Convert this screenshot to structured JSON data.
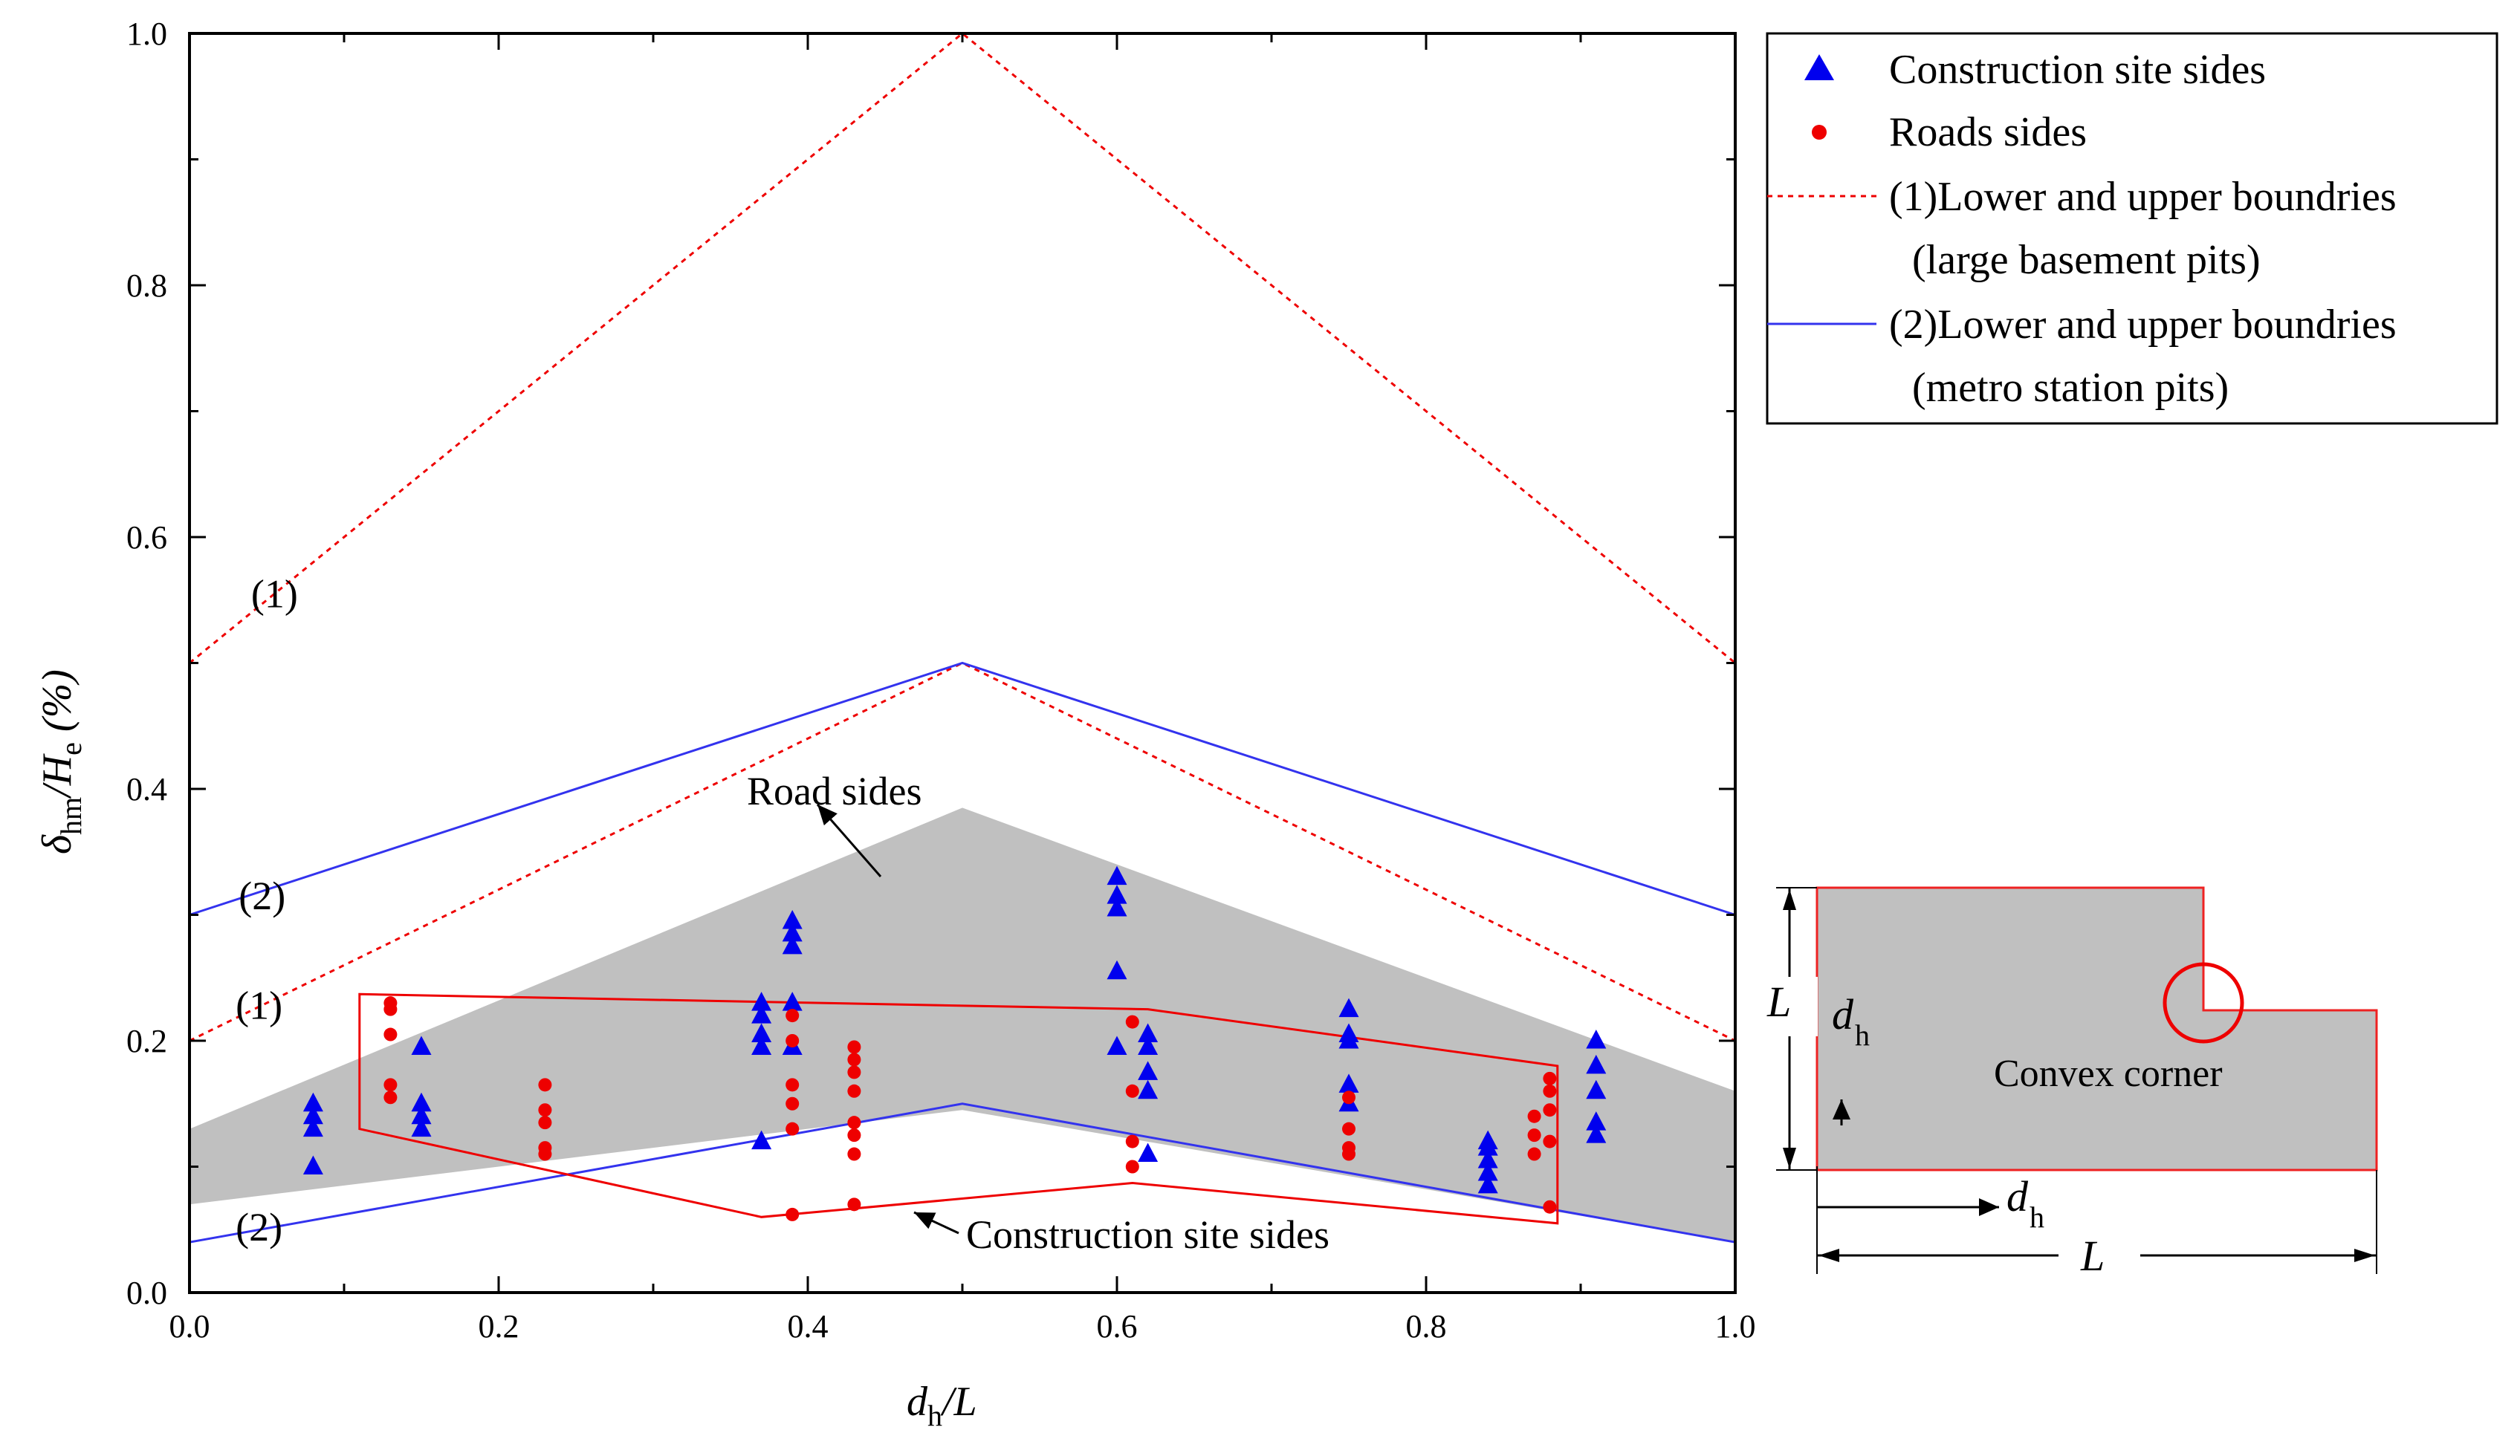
{
  "chart_data": {
    "type": "scatter",
    "title": "",
    "xlabel": {
      "main": "d",
      "sub": "h",
      "rest": "/L"
    },
    "ylabel": {
      "delta": "δ",
      "sub1": "hm",
      "mid": "/H",
      "sub2": "e",
      "rest": " (%)"
    },
    "xlim": [
      0.0,
      1.0
    ],
    "ylim": [
      0.0,
      1.0
    ],
    "x_ticks": [
      "0.0",
      "0.2",
      "0.4",
      "0.6",
      "0.8",
      "1.0"
    ],
    "y_ticks": [
      "0.0",
      "0.2",
      "0.4",
      "0.6",
      "0.8",
      "1.0"
    ],
    "grid": false,
    "legend_position": "outside-top-right",
    "series": [
      {
        "name": "Construction site sides",
        "marker": "triangle",
        "color": "#0000ee",
        "points": [
          [
            0.08,
            0.1
          ],
          [
            0.08,
            0.13
          ],
          [
            0.08,
            0.14
          ],
          [
            0.08,
            0.15
          ],
          [
            0.15,
            0.13
          ],
          [
            0.15,
            0.14
          ],
          [
            0.15,
            0.15
          ],
          [
            0.15,
            0.195
          ],
          [
            0.37,
            0.12
          ],
          [
            0.37,
            0.195
          ],
          [
            0.37,
            0.205
          ],
          [
            0.37,
            0.22
          ],
          [
            0.37,
            0.23
          ],
          [
            0.39,
            0.195
          ],
          [
            0.39,
            0.23
          ],
          [
            0.39,
            0.275
          ],
          [
            0.39,
            0.285
          ],
          [
            0.39,
            0.295
          ],
          [
            0.6,
            0.195
          ],
          [
            0.6,
            0.255
          ],
          [
            0.6,
            0.305
          ],
          [
            0.6,
            0.315
          ],
          [
            0.6,
            0.33
          ],
          [
            0.62,
            0.11
          ],
          [
            0.62,
            0.16
          ],
          [
            0.62,
            0.175
          ],
          [
            0.62,
            0.195
          ],
          [
            0.62,
            0.205
          ],
          [
            0.75,
            0.15
          ],
          [
            0.75,
            0.165
          ],
          [
            0.75,
            0.2
          ],
          [
            0.75,
            0.205
          ],
          [
            0.75,
            0.225
          ],
          [
            0.84,
            0.085
          ],
          [
            0.84,
            0.095
          ],
          [
            0.84,
            0.105
          ],
          [
            0.84,
            0.115
          ],
          [
            0.84,
            0.12
          ],
          [
            0.91,
            0.125
          ],
          [
            0.91,
            0.135
          ],
          [
            0.91,
            0.16
          ],
          [
            0.91,
            0.18
          ],
          [
            0.91,
            0.2
          ]
        ]
      },
      {
        "name": "Roads sides",
        "marker": "circle",
        "color": "#ee0000",
        "points": [
          [
            0.13,
            0.155
          ],
          [
            0.13,
            0.165
          ],
          [
            0.13,
            0.205
          ],
          [
            0.13,
            0.225
          ],
          [
            0.13,
            0.23
          ],
          [
            0.23,
            0.11
          ],
          [
            0.23,
            0.115
          ],
          [
            0.23,
            0.135
          ],
          [
            0.23,
            0.145
          ],
          [
            0.23,
            0.165
          ],
          [
            0.39,
            0.062
          ],
          [
            0.39,
            0.13
          ],
          [
            0.39,
            0.15
          ],
          [
            0.39,
            0.165
          ],
          [
            0.39,
            0.2
          ],
          [
            0.39,
            0.22
          ],
          [
            0.43,
            0.07
          ],
          [
            0.43,
            0.11
          ],
          [
            0.43,
            0.125
          ],
          [
            0.43,
            0.135
          ],
          [
            0.43,
            0.16
          ],
          [
            0.43,
            0.175
          ],
          [
            0.43,
            0.185
          ],
          [
            0.43,
            0.195
          ],
          [
            0.61,
            0.1
          ],
          [
            0.61,
            0.12
          ],
          [
            0.61,
            0.16
          ],
          [
            0.61,
            0.215
          ],
          [
            0.75,
            0.11
          ],
          [
            0.75,
            0.115
          ],
          [
            0.75,
            0.13
          ],
          [
            0.75,
            0.155
          ],
          [
            0.87,
            0.11
          ],
          [
            0.87,
            0.125
          ],
          [
            0.87,
            0.14
          ],
          [
            0.88,
            0.068
          ],
          [
            0.88,
            0.12
          ],
          [
            0.88,
            0.145
          ],
          [
            0.88,
            0.16
          ],
          [
            0.88,
            0.17
          ]
        ]
      }
    ],
    "boundary_lines": [
      {
        "name": "(1)Lower and upper boundries",
        "name_line2": "(large basement pits)",
        "style": "dotted",
        "color": "#ee0000",
        "lines": [
          [
            [
              0.0,
              0.5
            ],
            [
              0.5,
              1.0
            ],
            [
              1.0,
              0.5
            ]
          ],
          [
            [
              0.0,
              0.2
            ],
            [
              0.5,
              0.5
            ],
            [
              1.0,
              0.2
            ]
          ]
        ]
      },
      {
        "name": "(2)Lower and upper boundries",
        "name_line2": "(metro station pits)",
        "style": "solid",
        "color": "#3333ee",
        "lines": [
          [
            [
              0.0,
              0.3
            ],
            [
              0.5,
              0.5
            ],
            [
              1.0,
              0.3
            ]
          ],
          [
            [
              0.0,
              0.04
            ],
            [
              0.5,
              0.15
            ],
            [
              1.0,
              0.04
            ]
          ]
        ]
      }
    ],
    "road_band": {
      "label": "Road sides",
      "color": "#c0c0c0",
      "polygon": [
        [
          0.0,
          0.13
        ],
        [
          0.5,
          0.385
        ],
        [
          1.0,
          0.16
        ],
        [
          1.0,
          0.04
        ],
        [
          0.5,
          0.145
        ],
        [
          0.0,
          0.07
        ]
      ]
    },
    "construction_region": {
      "label": "Construction site sides",
      "color": "#ee0000",
      "polygon": [
        [
          0.11,
          0.237
        ],
        [
          0.62,
          0.225
        ],
        [
          0.885,
          0.18
        ],
        [
          0.885,
          0.055
        ],
        [
          0.61,
          0.087
        ],
        [
          0.37,
          0.06
        ],
        [
          0.11,
          0.13
        ]
      ]
    },
    "annotations": [
      {
        "text": "(1)",
        "x": 0.055,
        "y": 0.555
      },
      {
        "text": "(2)",
        "x": 0.047,
        "y": 0.315
      },
      {
        "text": "(1)",
        "x": 0.045,
        "y": 0.228
      },
      {
        "text": "(2)",
        "x": 0.045,
        "y": 0.052
      }
    ],
    "inset": {
      "label": "Convex corner",
      "dimension_L": "L",
      "dimension_d": "d",
      "dimension_sub": "h"
    }
  }
}
